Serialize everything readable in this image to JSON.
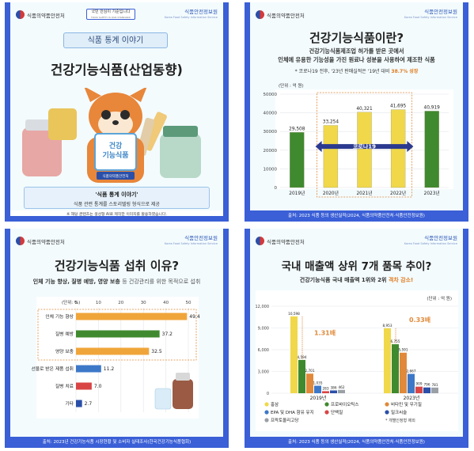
{
  "header": {
    "ministry": "식품의약품안전처",
    "institute": "식품안전정보원",
    "institute_en": "Korea Food Safety Information Service",
    "slogan": "국민 안심이 기준입니다",
    "slogan_en": "FOOD SAFETY IS OUR STANDARD"
  },
  "card1": {
    "badge": "식품 통계 이야기",
    "title": "건강기능식품(산업동향)",
    "mascot_sign": "건강\n기능식품",
    "mascot_sign_line1": "건강",
    "mascot_sign_line2": "기능식품",
    "mascot_badge": "식품의약품안전처",
    "banner_title": "'식품 통계 이야기'",
    "banner_sub": "식품 관련 통계를 스토리텔링 형식으로 제공",
    "note": "※ 해당 콘텐츠는 생성형 AI로 제작한 이미지를 활용하였습니다."
  },
  "card2": {
    "title": "건강기능식품이란?",
    "def_line1": "건강기능식품제조업 허가를 받은 곳에서",
    "def_line2": "인체에 유용한 기능성을 가진 원료나 성분을 사용하여 제조한 식품",
    "growth_prefix": "* 코로나19 전후, '23년 판매실적은 '19년 대비 ",
    "growth_highlight": "38.7% 성장",
    "unit": "(단위 : 억 원)",
    "covid_label": "코로나19",
    "source": "출처: 2023 식품 등의 생산실적(2024, 식품의약품안전처·식품안전정보원)",
    "chart_data": {
      "type": "bar",
      "categories": [
        "2019년",
        "2020년",
        "2021년",
        "2022년",
        "2023년"
      ],
      "values": [
        29508,
        33254,
        40321,
        41695,
        40919
      ],
      "value_labels": [
        "29,508",
        "33,254",
        "40,321",
        "41,695",
        "40,919"
      ],
      "yticks": [
        "0",
        "10000",
        "20000",
        "30000",
        "40000",
        "50000"
      ],
      "ylim": [
        0,
        50000
      ],
      "colors": [
        "#3f8a2e",
        "#f0d84a",
        "#f0d84a",
        "#f0d84a",
        "#3f8a2e"
      ]
    }
  },
  "card3": {
    "title": "건강기능식품 섭취 이유?",
    "subtitle_main": "인체 기능 향상, 질병 예방, 영양 보충 ",
    "subtitle_rest": "등 건강관리를 위한 목적으로 섭취",
    "unit": "(단위: %)",
    "source": "출처: 2023년 건강기능식품 시장현황 및 소비자 실태조사(한국건강기능식품협회)",
    "chart_data": {
      "type": "bar",
      "orientation": "horizontal",
      "categories": [
        "인체 기능 향상",
        "질병 예방",
        "영양 보충",
        "선물로 받은 제품 섭취",
        "질병 치료",
        "기타"
      ],
      "values": [
        49.4,
        37.2,
        32.5,
        11.2,
        7.0,
        2.7
      ],
      "value_labels": [
        "49.4",
        "37.2",
        "32.5",
        "11.2",
        "7.0",
        "2.7"
      ],
      "xticks": [
        "0",
        "10",
        "20",
        "30",
        "40",
        "50"
      ],
      "xlim": [
        0,
        50
      ],
      "colors": [
        "#f0a53a",
        "#3f8a2e",
        "#f0a53a",
        "#3d78c8",
        "#d94545",
        "#2a4fa8"
      ]
    }
  },
  "card4": {
    "title": "국내 매출액 상위 7개 품목 추이?",
    "subtitle_prefix": "건강기능식품 국내 매출액 1위와 2위 ",
    "subtitle_highlight": "격차 감소!",
    "unit": "(단위 : 억 원)",
    "ratio_2019": "1.31배",
    "ratio_2023": "0.33배",
    "note": "* 개별인정형 제외",
    "source": "출처: 2023 식품 등의 생산실적(2024, 식품의약품안전처·식품안전정보원)",
    "chart_data": {
      "type": "bar",
      "categories": [
        "2019년",
        "2023년"
      ],
      "yticks": [
        "0",
        "3,000",
        "6,000",
        "9,000",
        "12,000"
      ],
      "ylim": [
        0,
        12000
      ],
      "series": [
        {
          "name": "홍삼",
          "values": [
            10598,
            8953
          ],
          "labels": [
            "10,598",
            "8,953"
          ],
          "color": "#f0d84a"
        },
        {
          "name": "프로바이오틱스",
          "values": [
            4594,
            6755
          ],
          "labels": [
            "4,594",
            "6,755"
          ],
          "color": "#3f8a2e"
        },
        {
          "name": "비타민 및 무기질",
          "values": [
            2701,
            5591
          ],
          "labels": [
            "2,701",
            "5,591"
          ],
          "color": "#e0893a"
        },
        {
          "name": "EPA 및 DHA 함유 유지",
          "values": [
            1035,
            2667
          ],
          "labels": [
            "1,035",
            "2,667"
          ],
          "color": "#3d78c8"
        },
        {
          "name": "단백질",
          "values": [
            283,
            909
          ],
          "labels": [
            "283",
            "909"
          ],
          "color": "#d94545"
        },
        {
          "name": "밀크씨슬",
          "values": [
            386,
            796
          ],
          "labels": [
            "386",
            "796"
          ],
          "color": "#2a4fa8"
        },
        {
          "name": "프락토올리고당",
          "values": [
            462,
            781
          ],
          "labels": [
            "462",
            "781"
          ],
          "color": "#9aa0a6"
        }
      ]
    }
  }
}
